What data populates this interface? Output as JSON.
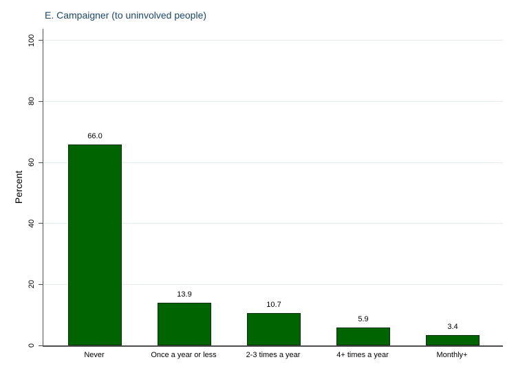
{
  "chart_data": {
    "type": "bar",
    "title": "E. Campaigner (to uninvolved people)",
    "xlabel": "",
    "ylabel": "Percent",
    "categories": [
      "Never",
      "Once a year or less",
      "2-3 times a year",
      "4+ times a year",
      "Monthly+"
    ],
    "values": [
      66.0,
      13.9,
      10.7,
      5.9,
      3.4
    ],
    "value_labels": [
      "66.0",
      "13.9",
      "10.7",
      "5.9",
      "3.4"
    ],
    "yticks": [
      "0",
      "20",
      "40",
      "60",
      "80",
      "100"
    ],
    "ylim": [
      0,
      103.8
    ],
    "grid": true,
    "legend": "none",
    "colors": {
      "bar_fill": "#006400",
      "bar_border": "#0a2e0a",
      "gridline": "#e4eef1",
      "axis": "#4d4d4d",
      "title": "#1a476f",
      "text": "#000000"
    }
  }
}
